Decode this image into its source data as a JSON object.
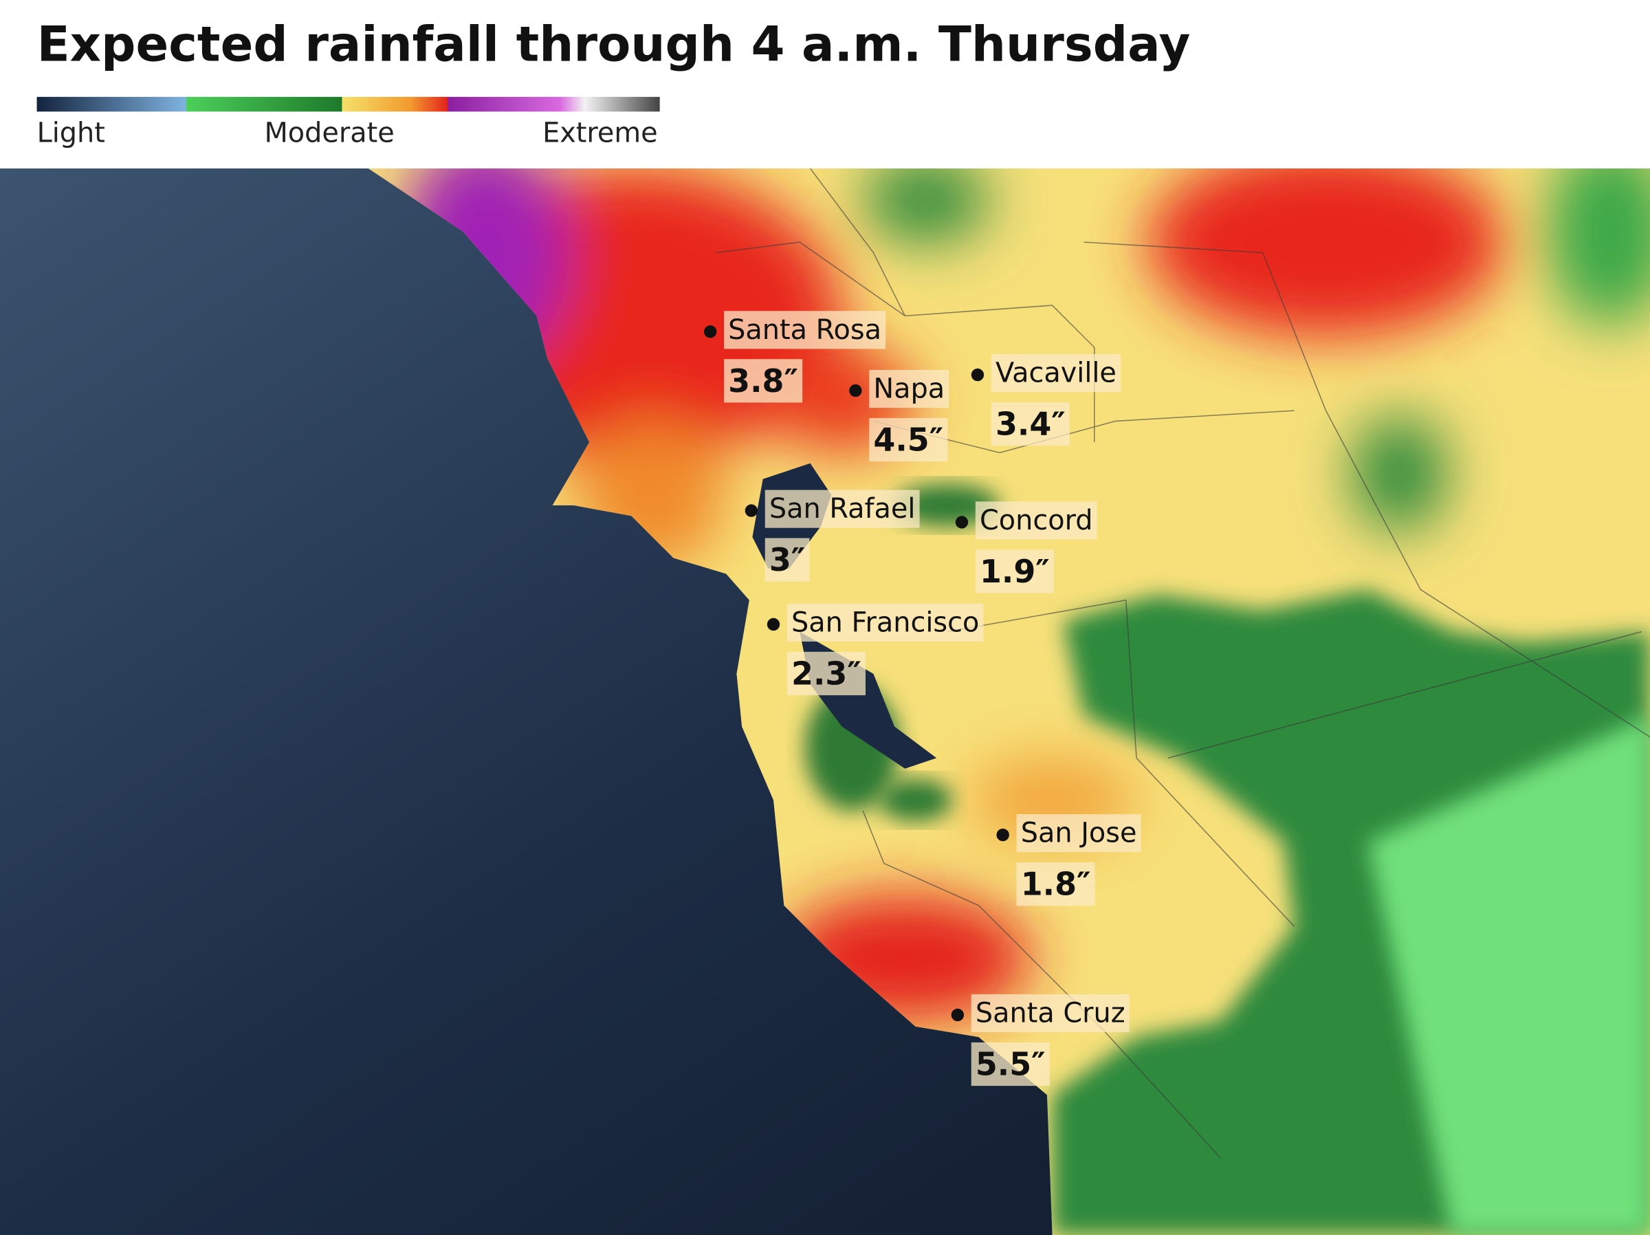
{
  "header": {
    "title": "Expected rainfall through 4 a.m. Thursday"
  },
  "legend": {
    "labels": [
      "Light",
      "Moderate",
      "Extreme"
    ]
  },
  "cities": [
    {
      "name": "Santa Rosa",
      "rainfall": "3.8″"
    },
    {
      "name": "Napa",
      "rainfall": "4.5″"
    },
    {
      "name": "Vacaville",
      "rainfall": "3.4″"
    },
    {
      "name": "San Rafael",
      "rainfall": "3″"
    },
    {
      "name": "Concord",
      "rainfall": "1.9″"
    },
    {
      "name": "San Francisco",
      "rainfall": "2.3″"
    },
    {
      "name": "San Jose",
      "rainfall": "1.8″"
    },
    {
      "name": "Santa Cruz",
      "rainfall": "5.5″"
    }
  ]
}
